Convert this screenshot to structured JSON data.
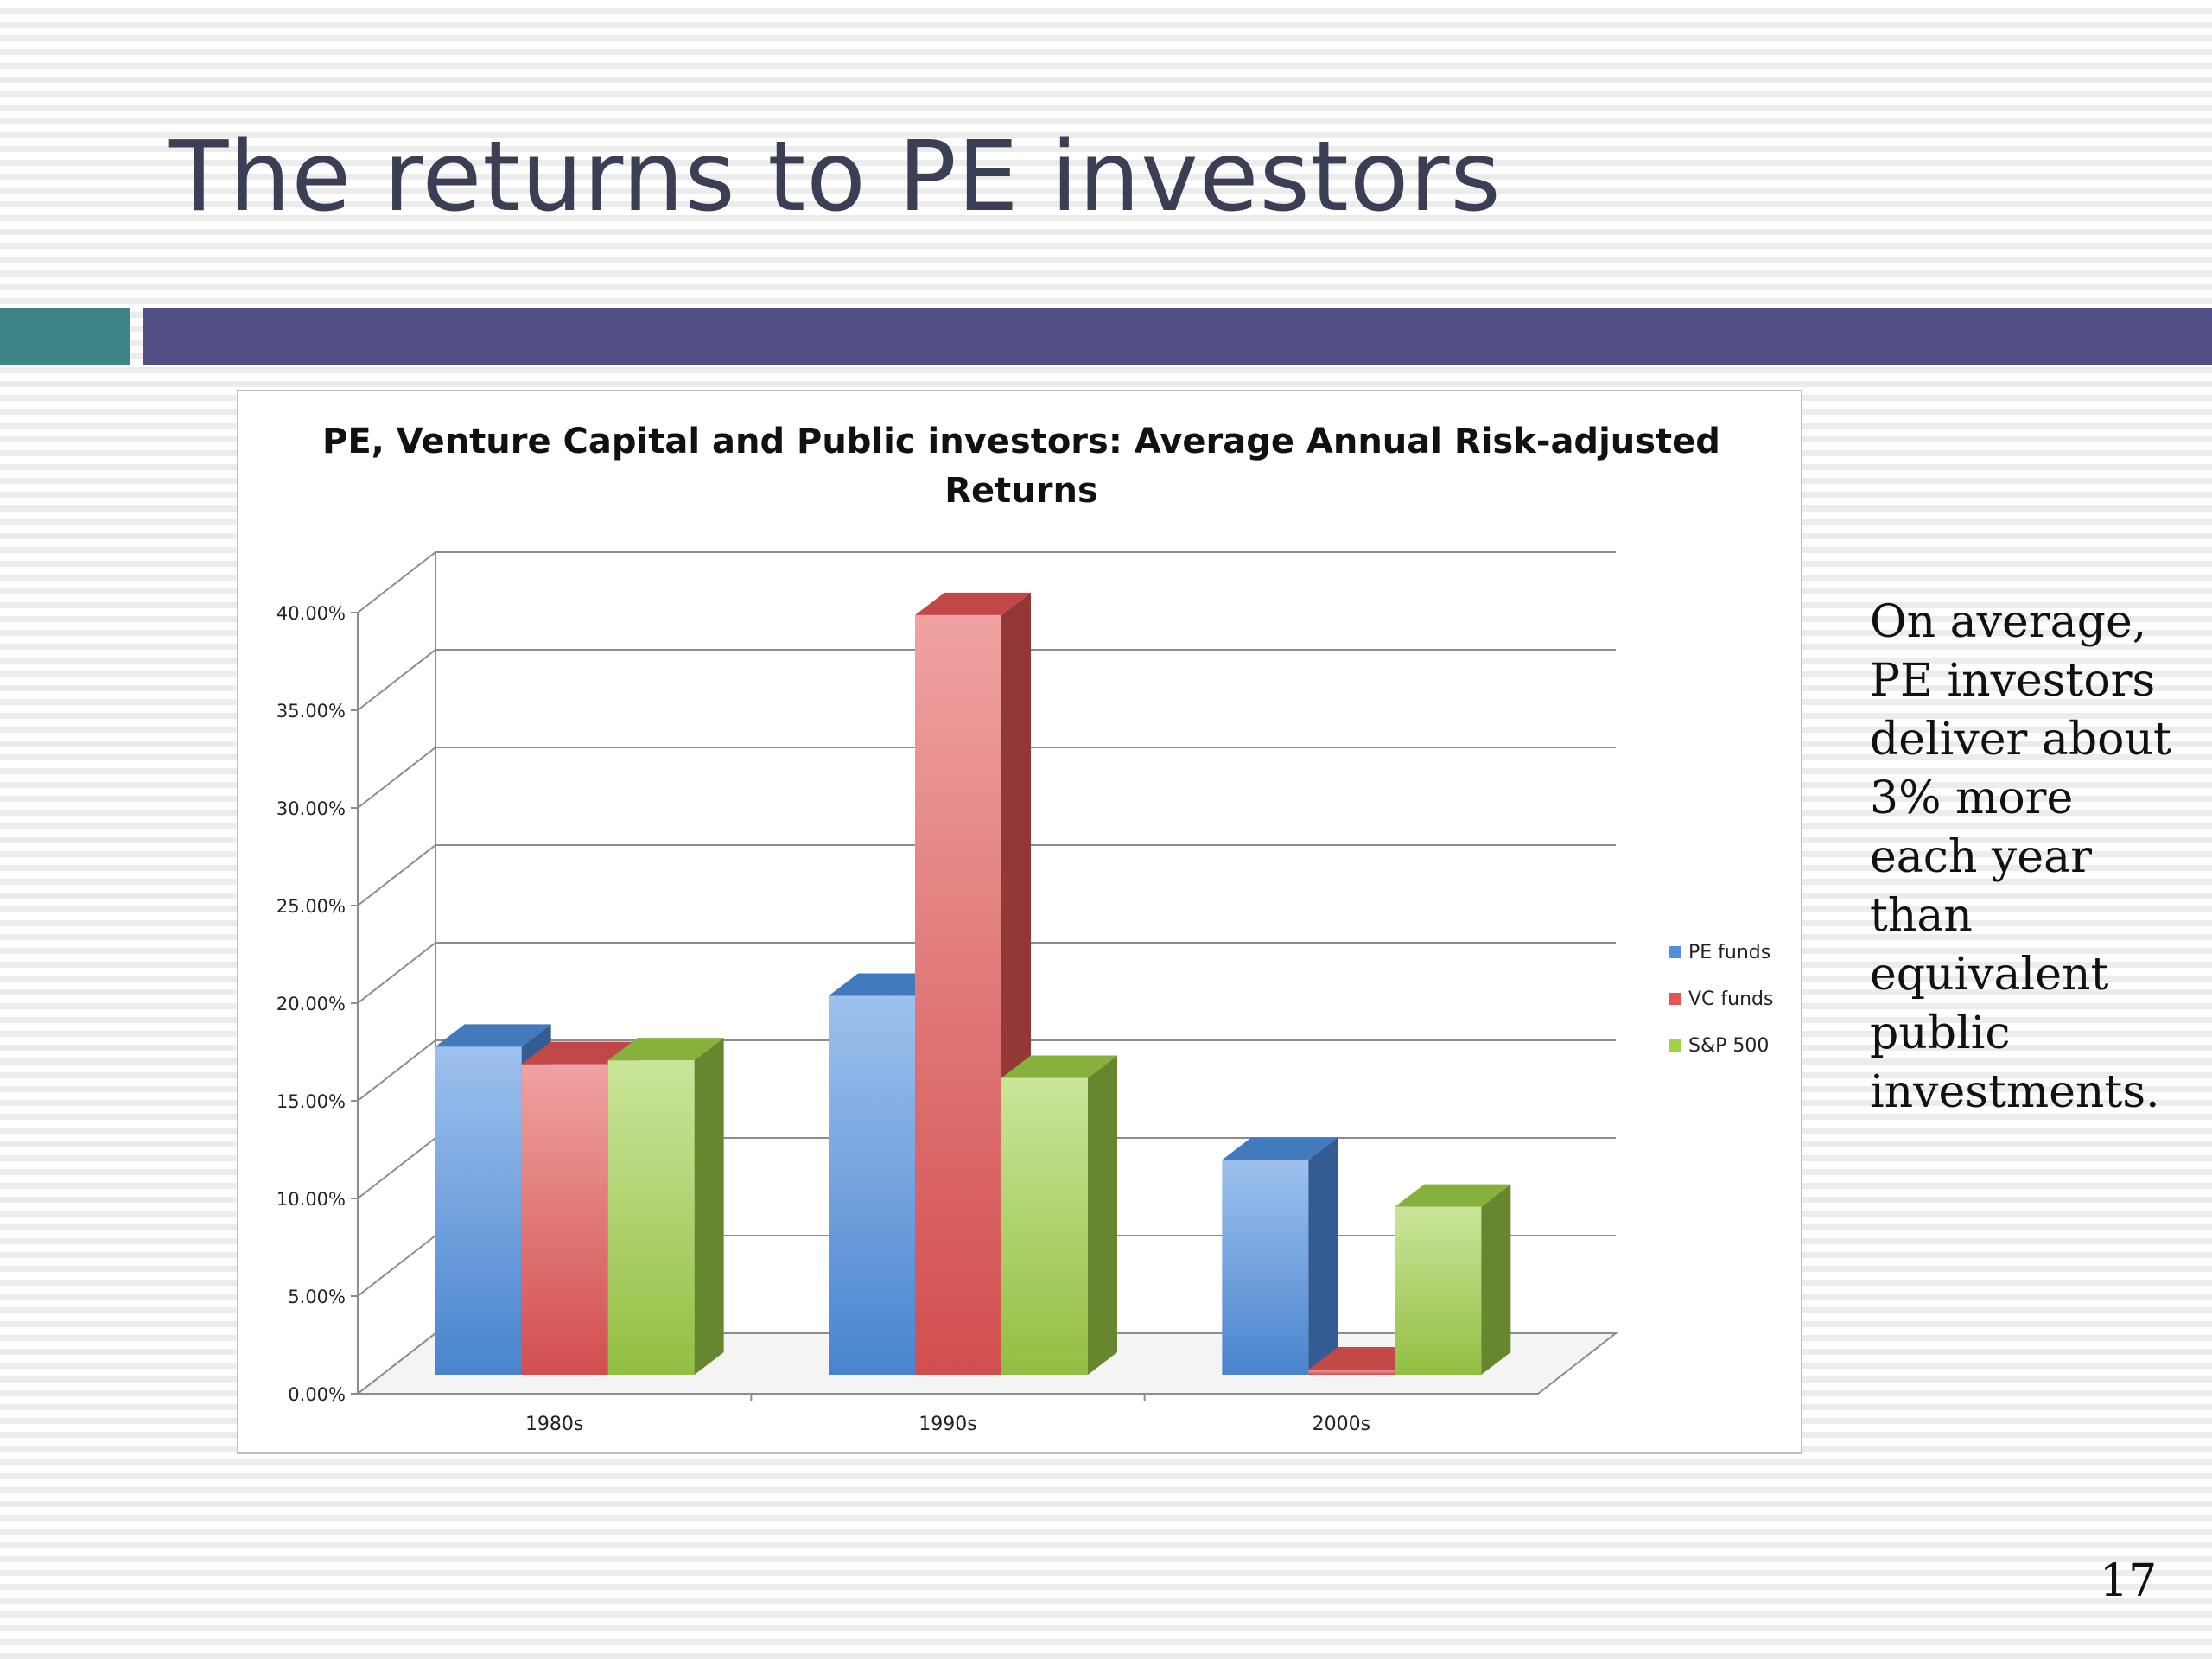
{
  "slide": {
    "title": "The returns to PE investors",
    "side_text_lines": [
      "On average,",
      "PE investors",
      "deliver about",
      "3% more",
      "each year",
      "than",
      "equivalent",
      "public",
      "investments."
    ],
    "page_number": "17",
    "colors": {
      "title": "#3b3f55",
      "accent_bar": "#3e8487",
      "main_bar": "#524f86"
    }
  },
  "chart_data": {
    "type": "bar",
    "title_lines": [
      "PE, Venture Capital and Public investors: Average Annual Risk-adjusted",
      "Returns"
    ],
    "categories": [
      "1980s",
      "1990s",
      "2000s"
    ],
    "series": [
      {
        "name": "PE funds",
        "values": [
          16.8,
          19.4,
          11.0
        ],
        "color": "#4f8fe0"
      },
      {
        "name": "VC funds",
        "values": [
          15.9,
          38.9,
          0.0
        ],
        "color": "#e45555"
      },
      {
        "name": "S&P 500",
        "values": [
          16.1,
          15.2,
          8.6
        ],
        "color": "#9fd048"
      }
    ],
    "y_ticks": [
      "0.00%",
      "5.00%",
      "10.00%",
      "15.00%",
      "20.00%",
      "25.00%",
      "30.00%",
      "35.00%",
      "40.00%"
    ],
    "ylim": [
      0,
      40
    ],
    "grid": true,
    "legend_position": "right"
  }
}
